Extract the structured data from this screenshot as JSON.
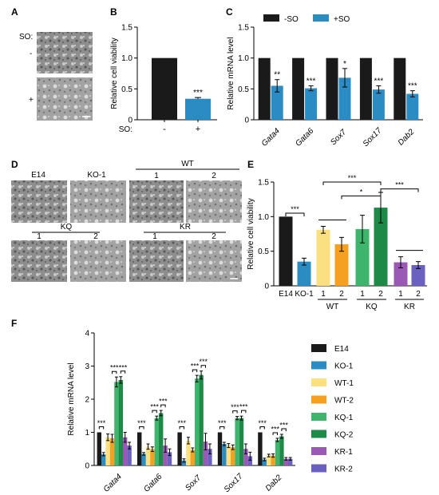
{
  "panels": {
    "A": {
      "letter": "A",
      "so_label": "SO:",
      "conditions": [
        "-",
        "+"
      ]
    },
    "D": {
      "letter": "D",
      "image_labels": [
        "E14",
        "KO-1",
        "1",
        "2",
        "1",
        "2",
        "1",
        "2"
      ],
      "group_labels": [
        "WT",
        "KQ",
        "KR"
      ]
    }
  },
  "chart_data": [
    {
      "panel": "B",
      "type": "bar",
      "ylabel": "Relative cell viability",
      "ylim": [
        0,
        1.5
      ],
      "yticks": [
        "0",
        "0.5",
        "1.0",
        "1.5"
      ],
      "x_prefix": "SO:",
      "categories": [
        "-",
        "+"
      ],
      "values": [
        1.0,
        0.34
      ],
      "errors": [
        0,
        0.02
      ],
      "colors": [
        "#1a1a1a",
        "#2b8cc4"
      ],
      "significance": [
        {
          "category": "+",
          "label": "***"
        }
      ]
    },
    {
      "panel": "C",
      "type": "bar",
      "ylabel": "Relative mRNA level",
      "ylim": [
        0,
        1.5
      ],
      "yticks": [
        "0",
        "0.5",
        "1.0",
        "1.5"
      ],
      "categories": [
        "Gata4",
        "Gata6",
        "Sox7",
        "Sox17",
        "Dab2"
      ],
      "series": [
        {
          "name": "-SO",
          "color": "#1a1a1a",
          "values": [
            1,
            1,
            1,
            1,
            1
          ],
          "errors": [
            0,
            0,
            0,
            0,
            0
          ]
        },
        {
          "name": "+SO",
          "color": "#2b8cc4",
          "values": [
            0.55,
            0.51,
            0.68,
            0.49,
            0.42
          ],
          "errors": [
            0.1,
            0.04,
            0.15,
            0.06,
            0.05
          ]
        }
      ],
      "significance": [
        "**",
        "***",
        "*",
        "***",
        "***"
      ],
      "legend": "top"
    },
    {
      "panel": "E",
      "type": "bar",
      "ylabel": "Relative cell viability",
      "ylim": [
        0,
        1.5
      ],
      "yticks": [
        "0",
        "0.5",
        "1.0",
        "1.5"
      ],
      "categories": [
        "E14",
        "KO-1",
        "1",
        "2",
        "1",
        "2",
        "1",
        "2"
      ],
      "groups": [
        {
          "label": "WT",
          "from": 2,
          "to": 3
        },
        {
          "label": "KQ",
          "from": 4,
          "to": 5
        },
        {
          "label": "KR",
          "from": 6,
          "to": 7
        }
      ],
      "values": [
        1.0,
        0.35,
        0.81,
        0.6,
        0.82,
        1.13,
        0.34,
        0.3
      ],
      "errors": [
        0,
        0.05,
        0.05,
        0.1,
        0.2,
        0.22,
        0.08,
        0.05
      ],
      "colors": [
        "#1a1a1a",
        "#2b8cc4",
        "#fae080",
        "#f5a020",
        "#3fb46c",
        "#1e8a48",
        "#9b59b6",
        "#6a60c0"
      ],
      "significance": [
        {
          "from": 0,
          "to": 1,
          "label": "***"
        },
        {
          "from": 3,
          "to": 5,
          "label": "*"
        },
        {
          "from": 2,
          "to": 5,
          "label": "***"
        },
        {
          "from": 5,
          "to": 7,
          "label": "***"
        }
      ],
      "ns_lines": [
        [
          2,
          3
        ],
        [
          6,
          7
        ]
      ]
    },
    {
      "panel": "F",
      "type": "bar",
      "ylabel": "Relative mRNA level",
      "ylim": [
        0,
        4
      ],
      "yticks": [
        "0",
        "1",
        "2",
        "3",
        "4"
      ],
      "categories": [
        "Gata4",
        "Gata6",
        "Sox7",
        "Sox17",
        "Dab2"
      ],
      "series": [
        {
          "name": "E14",
          "color": "#1a1a1a",
          "values": [
            1,
            1,
            1,
            1,
            1
          ],
          "errors": [
            0,
            0,
            0,
            0,
            0
          ]
        },
        {
          "name": "KO-1",
          "color": "#2b8cc4",
          "values": [
            0.34,
            0.35,
            0.15,
            0.65,
            0.18
          ],
          "errors": [
            0.05,
            0.04,
            0.05,
            0.05,
            0.04
          ]
        },
        {
          "name": "WT-1",
          "color": "#fae080",
          "values": [
            0.85,
            0.57,
            0.75,
            0.6,
            0.3
          ],
          "errors": [
            0.1,
            0.08,
            0.1,
            0.06,
            0.04
          ]
        },
        {
          "name": "WT-2",
          "color": "#f5a020",
          "values": [
            0.82,
            0.49,
            0.47,
            0.55,
            0.3
          ],
          "errors": [
            0.12,
            0.07,
            0.06,
            0.07,
            0.05
          ]
        },
        {
          "name": "KQ-1",
          "color": "#3fb46c",
          "values": [
            2.52,
            1.43,
            2.62,
            1.43,
            0.77
          ],
          "errors": [
            0.15,
            0.06,
            0.1,
            0.05,
            0.05
          ]
        },
        {
          "name": "KQ-2",
          "color": "#1e8a48",
          "values": [
            2.58,
            1.58,
            2.73,
            1.43,
            0.88
          ],
          "errors": [
            0.1,
            0.08,
            0.12,
            0.06,
            0.06
          ]
        },
        {
          "name": "KR-1",
          "color": "#9b59b6",
          "values": [
            0.85,
            0.6,
            0.72,
            0.5,
            0.2
          ],
          "errors": [
            0.15,
            0.2,
            0.25,
            0.15,
            0.04
          ]
        },
        {
          "name": "KR-2",
          "color": "#6a60c0",
          "values": [
            0.6,
            0.4,
            0.5,
            0.28,
            0.2
          ],
          "errors": [
            0.1,
            0.1,
            0.15,
            0.12,
            0.04
          ]
        }
      ],
      "significance_label": "***",
      "legend": "right"
    }
  ]
}
